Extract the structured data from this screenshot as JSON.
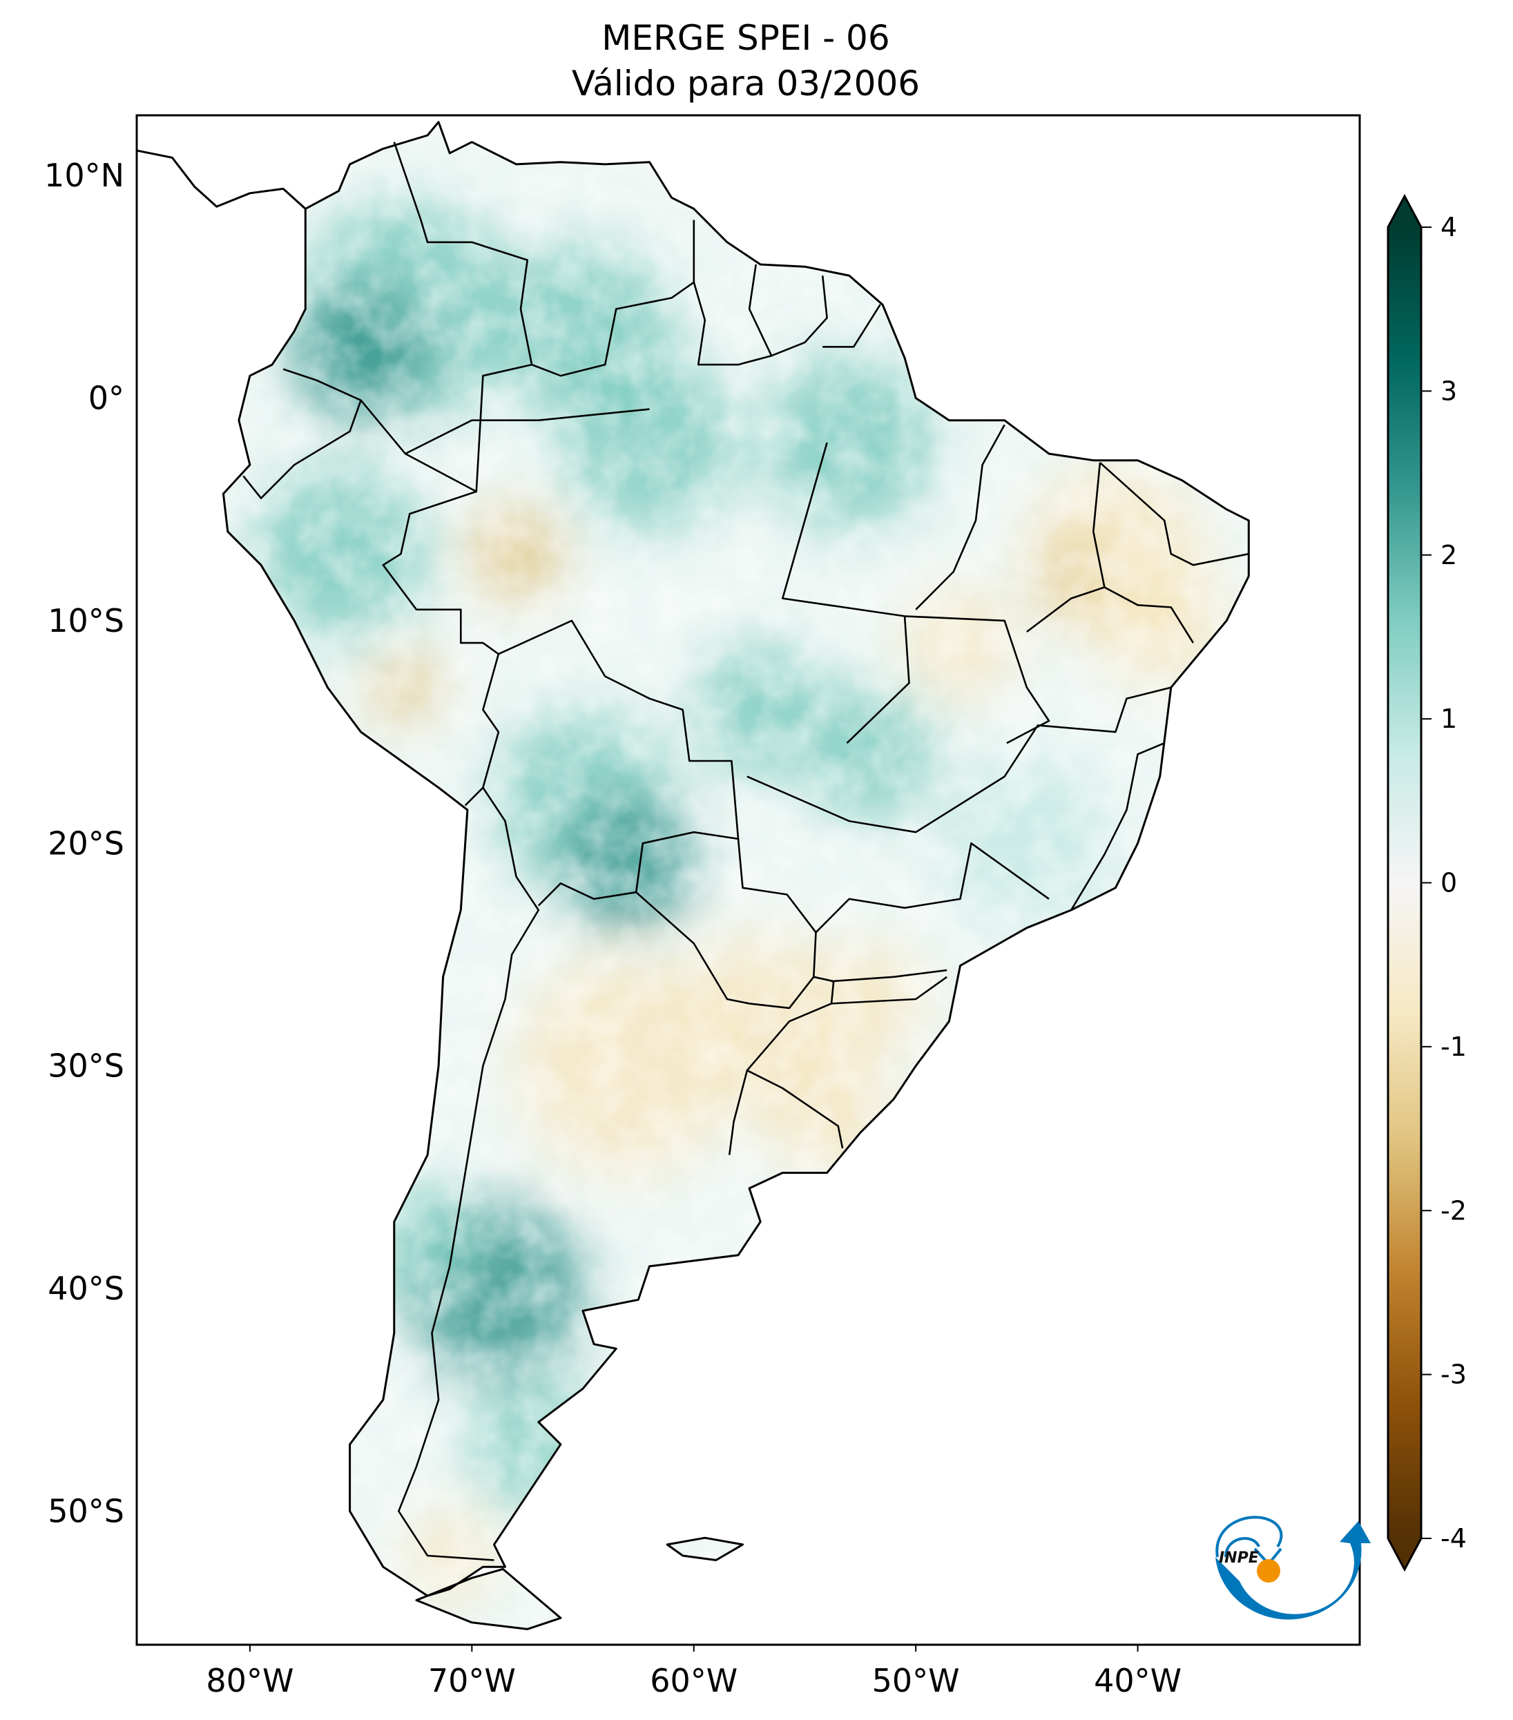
{
  "title": {
    "line1": "MERGE   SPEI - 06",
    "line2": "Válido para 03/2006"
  },
  "map": {
    "extent": {
      "lon": [
        -85.1,
        -30
      ],
      "lat": [
        -56,
        12.7
      ]
    },
    "lon_ticks": [
      {
        "value": -80,
        "label": "80°W"
      },
      {
        "value": -70,
        "label": "70°W"
      },
      {
        "value": -60,
        "label": "60°W"
      },
      {
        "value": -50,
        "label": "50°W"
      },
      {
        "value": -40,
        "label": "40°W"
      }
    ],
    "lat_ticks": [
      {
        "value": 10,
        "label": "10°N"
      },
      {
        "value": 0,
        "label": "0°"
      },
      {
        "value": -10,
        "label": "10°S"
      },
      {
        "value": -20,
        "label": "20°S"
      },
      {
        "value": -30,
        "label": "30°S"
      },
      {
        "value": -40,
        "label": "40°S"
      },
      {
        "value": -50,
        "label": "50°S"
      }
    ],
    "variable": "SPEI-06",
    "colormap": "BrBG"
  },
  "colorbar": {
    "range": [
      -4,
      4
    ],
    "extend": "both",
    "ticks": [
      {
        "value": 4,
        "label": "4"
      },
      {
        "value": 3,
        "label": "3"
      },
      {
        "value": 2,
        "label": "2"
      },
      {
        "value": 1,
        "label": "1"
      },
      {
        "value": 0,
        "label": "0"
      },
      {
        "value": -1,
        "label": "-1"
      },
      {
        "value": -2,
        "label": "-2"
      },
      {
        "value": -3,
        "label": "-3"
      },
      {
        "value": -4,
        "label": "-4"
      }
    ],
    "colors": [
      "#543005",
      "#8c510a",
      "#bf812d",
      "#dfc27d",
      "#f6e8c3",
      "#f5f5f5",
      "#c7eae5",
      "#80cdc1",
      "#35978f",
      "#01665e",
      "#003c30"
    ]
  },
  "logo": {
    "text": "INPE",
    "blue": "#0077bb",
    "orange": "#f39200"
  }
}
